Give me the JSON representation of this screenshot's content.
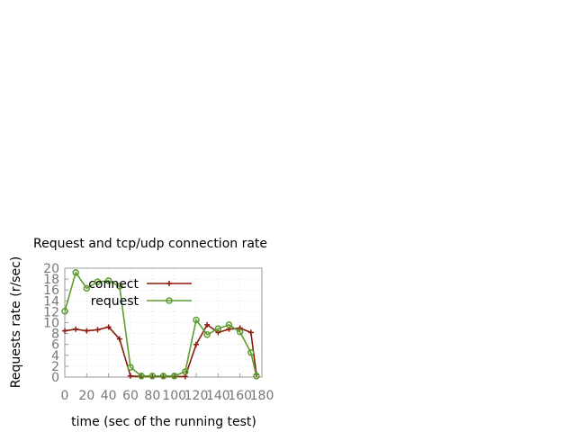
{
  "chart_data": {
    "type": "line",
    "title": "Request and tcp/udp connection rate",
    "xlabel": "time (sec of the running test)",
    "ylabel": "Requests rate (r/sec)",
    "xlim": [
      0,
      180
    ],
    "ylim": [
      0,
      20
    ],
    "xticks": [
      0,
      20,
      40,
      60,
      80,
      100,
      120,
      140,
      160,
      180
    ],
    "yticks": [
      0,
      2,
      4,
      6,
      8,
      10,
      12,
      14,
      16,
      18,
      20
    ],
    "grid": true,
    "legend_position": "top-left",
    "series": [
      {
        "name": "connect",
        "color": "#8b1a0e",
        "marker": "plus",
        "x": [
          0,
          10,
          20,
          30,
          40,
          50,
          60,
          70,
          80,
          90,
          100,
          110,
          120,
          130,
          140,
          150,
          160,
          170,
          175
        ],
        "y": [
          8.5,
          8.8,
          8.5,
          8.7,
          9.2,
          7.0,
          0.2,
          0.1,
          0.1,
          0.1,
          0.1,
          0.1,
          6.0,
          9.6,
          8.2,
          8.8,
          9.0,
          8.2,
          0.5
        ]
      },
      {
        "name": "request",
        "color": "#5d9c2e",
        "marker": "circle",
        "x": [
          0,
          10,
          20,
          30,
          40,
          50,
          60,
          70,
          80,
          90,
          100,
          110,
          120,
          130,
          140,
          150,
          160,
          170,
          175
        ],
        "y": [
          12.1,
          19.2,
          16.3,
          17.5,
          17.7,
          16.7,
          1.8,
          0.2,
          0.2,
          0.2,
          0.2,
          1.0,
          10.5,
          7.8,
          8.9,
          9.6,
          8.3,
          4.5,
          0.2
        ]
      }
    ]
  }
}
